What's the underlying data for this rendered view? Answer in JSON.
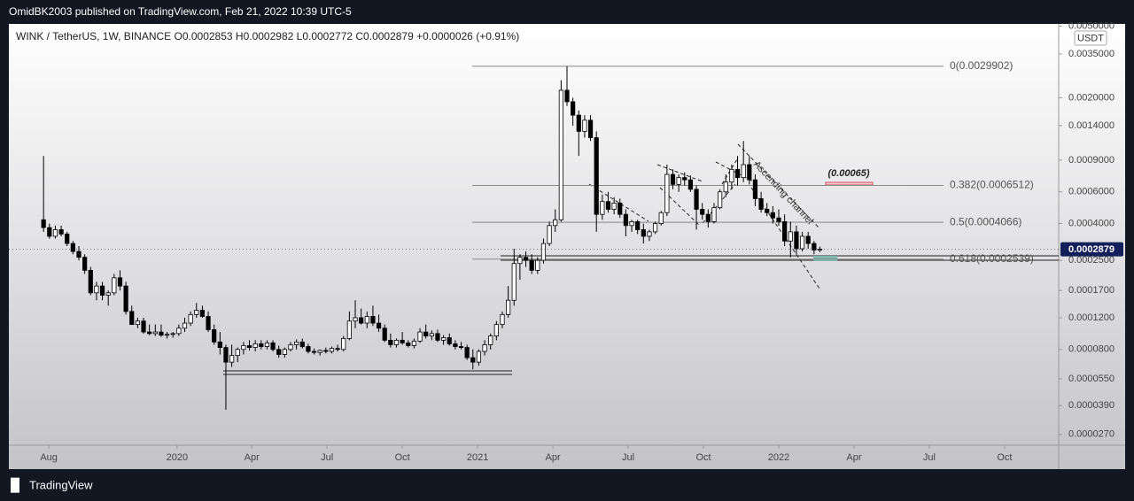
{
  "header": {
    "published": "OmidBK2003 published on TradingView.com, Feb 21, 2022 10:39 UTC-5"
  },
  "footer": {
    "brand": "TradingView"
  },
  "chart_data": {
    "type": "candlestick",
    "log_scale": true,
    "legend": {
      "symbol": "WINK / TetherUS, 1W, BINANCE",
      "open": "O0.0002853",
      "high": "H0.0002982",
      "low": "L0.0002772",
      "close": "C0.0002879",
      "change": "+0.0000026 (+0.91%)"
    },
    "currency": "USDT",
    "last_price": 0.0002879,
    "annotation": "(0.00065)",
    "channel_label": "Ascending channel",
    "fib_levels": [
      {
        "price": 0.0029902,
        "label": "0(0.0029902)"
      },
      {
        "price": 0.0006512,
        "label": "0.382(0.0006512)"
      },
      {
        "price": 0.0004066,
        "label": "0.5(0.0004066)"
      },
      {
        "price": 0.0002539,
        "label": "0.618(0.0002539)"
      }
    ],
    "ylim": [
      2.35e-05,
      0.00514
    ],
    "yticks": [
      {
        "value": 0.005,
        "label": "0.0050000"
      },
      {
        "value": 0.0035,
        "label": "0.0035000"
      },
      {
        "value": 0.002,
        "label": "0.0020000"
      },
      {
        "value": 0.0014,
        "label": "0.0014000"
      },
      {
        "value": 0.0009,
        "label": "0.0009000"
      },
      {
        "value": 0.0006,
        "label": "0.0006000"
      },
      {
        "value": 0.0004,
        "label": "0.0004000"
      },
      {
        "value": 0.00025,
        "label": "0.0002500"
      },
      {
        "value": 0.00017,
        "label": "0.0001700"
      },
      {
        "value": 0.00012,
        "label": "0.0001200"
      },
      {
        "value": 8e-05,
        "label": "0.0000800"
      },
      {
        "value": 5.5e-05,
        "label": "0.0000550"
      },
      {
        "value": 3.9e-05,
        "label": "0.0000390"
      },
      {
        "value": 2.7e-05,
        "label": "0.0000270"
      }
    ],
    "xlim": [
      -5.9,
      172.6
    ],
    "xticks": [
      {
        "value": 0.9,
        "label": "Aug"
      },
      {
        "value": 22.7,
        "label": "2020"
      },
      {
        "value": 35.4,
        "label": "Apr"
      },
      {
        "value": 48.2,
        "label": "Jul"
      },
      {
        "value": 61,
        "label": "Oct"
      },
      {
        "value": 73.8,
        "label": "2021"
      },
      {
        "value": 86.6,
        "label": "Apr"
      },
      {
        "value": 99.4,
        "label": "Jul"
      },
      {
        "value": 112.2,
        "label": "Oct"
      },
      {
        "value": 125,
        "label": "2022"
      },
      {
        "value": 137.8,
        "label": "Apr"
      },
      {
        "value": 150.6,
        "label": "Jul"
      },
      {
        "value": 163.4,
        "label": "Oct"
      }
    ],
    "candles": [
      [
        0.00042,
        0.00095,
        0.00036,
        0.00038
      ],
      [
        0.00038,
        0.0004,
        0.00033,
        0.00034
      ],
      [
        0.00034,
        0.00039,
        0.00033,
        0.00037
      ],
      [
        0.00037,
        0.00039,
        0.00034,
        0.00035
      ],
      [
        0.00035,
        0.00036,
        0.0003,
        0.00031
      ],
      [
        0.00031,
        0.00032,
        0.00027,
        0.00028
      ],
      [
        0.00028,
        0.0003,
        0.00025,
        0.00026
      ],
      [
        0.00026,
        0.00027,
        0.00021,
        0.00022
      ],
      [
        0.00022,
        0.00023,
        0.00016,
        0.000165
      ],
      [
        0.000165,
        0.00019,
        0.00015,
        0.00018
      ],
      [
        0.00018,
        0.00019,
        0.00015,
        0.00016
      ],
      [
        0.00016,
        0.00017,
        0.00014,
        0.000165
      ],
      [
        0.000165,
        0.00021,
        0.00016,
        0.0002
      ],
      [
        0.0002,
        0.00022,
        0.00017,
        0.00018
      ],
      [
        0.00018,
        0.00019,
        0.000125,
        0.00013
      ],
      [
        0.00013,
        0.00014,
        0.00011,
        0.00011
      ],
      [
        0.00011,
        0.00012,
        0.000105,
        0.000115
      ],
      [
        0.000115,
        0.00012,
        9.8e-05,
        0.0001
      ],
      [
        0.0001,
        0.00011,
        9.6e-05,
        9.8e-05
      ],
      [
        9.8e-05,
        0.00011,
        9.5e-05,
        0.0001
      ],
      [
        0.0001,
        0.00011,
        9.4e-05,
        9.6e-05
      ],
      [
        9.6e-05,
        0.0001,
        9.2e-05,
        9.7e-05
      ],
      [
        9.7e-05,
        0.0001,
        9.3e-05,
        9.8e-05
      ],
      [
        9.8e-05,
        0.00011,
        9.5e-05,
        0.000105
      ],
      [
        0.000105,
        0.00012,
        0.0001,
        0.000112
      ],
      [
        0.000112,
        0.00013,
        0.000108,
        0.000125
      ],
      [
        0.000125,
        0.000145,
        0.00012,
        0.000132
      ],
      [
        0.000132,
        0.00014,
        0.00012,
        0.000122
      ],
      [
        0.000122,
        0.00013,
        0.0001,
        0.000103
      ],
      [
        0.000103,
        0.00011,
        8.5e-05,
        8.8e-05
      ],
      [
        8.8e-05,
        0.0001,
        7.5e-05,
        8.2e-05
      ],
      [
        8.2e-05,
        8.5e-05,
        3.7e-05,
        6.8e-05
      ],
      [
        6.8e-05,
        8.5e-05,
        6.4e-05,
        7.4e-05
      ],
      [
        7.4e-05,
        8.2e-05,
        6.8e-05,
        8e-05
      ],
      [
        8e-05,
        8.8e-05,
        7.5e-05,
        8.4e-05
      ],
      [
        8.4e-05,
        9e-05,
        7.9e-05,
        8.2e-05
      ],
      [
        8.2e-05,
        9e-05,
        7.8e-05,
        8.6e-05
      ],
      [
        8.6e-05,
        9e-05,
        8e-05,
        8.3e-05
      ],
      [
        8.3e-05,
        9e-05,
        8e-05,
        8.7e-05
      ],
      [
        8.7e-05,
        9e-05,
        7.8e-05,
        8e-05
      ],
      [
        8e-05,
        8.4e-05,
        7.2e-05,
        7.5e-05
      ],
      [
        7.5e-05,
        8.2e-05,
        7.2e-05,
        8e-05
      ],
      [
        8e-05,
        8.8e-05,
        7.8e-05,
        8.5e-05
      ],
      [
        8.5e-05,
        9.1e-05,
        8e-05,
        8.8e-05
      ],
      [
        8.8e-05,
        9.2e-05,
        8.1e-05,
        8.3e-05
      ],
      [
        8.3e-05,
        8.6e-05,
        7.6e-05,
        7.8e-05
      ],
      [
        7.8e-05,
        8.1e-05,
        7.5e-05,
        7.7e-05
      ],
      [
        7.7e-05,
        8e-05,
        7.4e-05,
        7.9e-05
      ],
      [
        7.9e-05,
        8.2e-05,
        7.6e-05,
        7.8e-05
      ],
      [
        7.8e-05,
        8.3e-05,
        7.6e-05,
        8.1e-05
      ],
      [
        8.1e-05,
        8.5e-05,
        7.8e-05,
        8e-05
      ],
      [
        8e-05,
        9.5e-05,
        7.8e-05,
        9.2e-05
      ],
      [
        9.2e-05,
        0.00013,
        9e-05,
        0.000115
      ],
      [
        0.000115,
        0.00015,
        0.000105,
        0.00012
      ],
      [
        0.00012,
        0.000135,
        0.00011,
        0.000112
      ],
      [
        0.000112,
        0.00013,
        0.000105,
        0.000122
      ],
      [
        0.000122,
        0.00014,
        0.000108,
        0.000112
      ],
      [
        0.000112,
        0.000125,
        0.0001,
        0.000105
      ],
      [
        0.000105,
        0.00011,
        8.8e-05,
        9e-05
      ],
      [
        9e-05,
        9.8e-05,
        8.2e-05,
        8.5e-05
      ],
      [
        8.5e-05,
        9.2e-05,
        8.2e-05,
        9e-05
      ],
      [
        9e-05,
        0.0001,
        8.5e-05,
        8.7e-05
      ],
      [
        8.7e-05,
        9e-05,
        8.2e-05,
        8.4e-05
      ],
      [
        8.4e-05,
        9.2e-05,
        8.1e-05,
        8.9e-05
      ],
      [
        8.9e-05,
        0.000105,
        8.7e-05,
        0.0001
      ],
      [
        0.0001,
        0.00011,
        9.2e-05,
        9.5e-05
      ],
      [
        9.5e-05,
        0.000102,
        9e-05,
        9.8e-05
      ],
      [
        9.8e-05,
        0.000103,
        8.8e-05,
        9e-05
      ],
      [
        9e-05,
        9.6e-05,
        8.5e-05,
        9.3e-05
      ],
      [
        9.3e-05,
        9.8e-05,
        8.4e-05,
        8.6e-05
      ],
      [
        8.6e-05,
        9e-05,
        8e-05,
        8.3e-05
      ],
      [
        8.3e-05,
        8.8e-05,
        8e-05,
        8.2e-05
      ],
      [
        8.2e-05,
        8.5e-05,
        7e-05,
        7.2e-05
      ],
      [
        7.2e-05,
        8e-05,
        6.2e-05,
        6.8e-05
      ],
      [
        6.8e-05,
        8e-05,
        6.5e-05,
        7.8e-05
      ],
      [
        7.8e-05,
        9e-05,
        7.4e-05,
        8.5e-05
      ],
      [
        8.5e-05,
        9.8e-05,
        8e-05,
        9.5e-05
      ],
      [
        9.5e-05,
        0.000115,
        9e-05,
        0.00011
      ],
      [
        0.00011,
        0.00013,
        0.000105,
        0.000125
      ],
      [
        0.000125,
        0.00018,
        0.00012,
        0.00015
      ],
      [
        0.00015,
        0.00029,
        0.00014,
        0.00024
      ],
      [
        0.00024,
        0.00027,
        0.000195,
        0.00026
      ],
      [
        0.00026,
        0.00028,
        0.00023,
        0.00025
      ],
      [
        0.00025,
        0.00027,
        0.00021,
        0.00022
      ],
      [
        0.00022,
        0.00026,
        0.00021,
        0.00025
      ],
      [
        0.00025,
        0.00033,
        0.00024,
        0.00031
      ],
      [
        0.00031,
        0.00041,
        0.0003,
        0.00039
      ],
      [
        0.00039,
        0.00048,
        0.00036,
        0.00042
      ],
      [
        0.00042,
        0.0025,
        0.00041,
        0.0022
      ],
      [
        0.0022,
        0.0029902,
        0.0018,
        0.0019
      ],
      [
        0.0019,
        0.002,
        0.0014,
        0.0016
      ],
      [
        0.0016,
        0.0017,
        0.00095,
        0.0013
      ],
      [
        0.0013,
        0.0016,
        0.0012,
        0.0015
      ],
      [
        0.0015,
        0.0016,
        0.00115,
        0.0012
      ],
      [
        0.0012,
        0.0013,
        0.00036,
        0.00045
      ],
      [
        0.00045,
        0.00058,
        0.00042,
        0.00053
      ],
      [
        0.00053,
        0.0006,
        0.00046,
        0.00048
      ],
      [
        0.00048,
        0.00056,
        0.00045,
        0.00052
      ],
      [
        0.00052,
        0.00055,
        0.00043,
        0.00045
      ],
      [
        0.00045,
        0.00048,
        0.00034,
        0.00039
      ],
      [
        0.00039,
        0.00042,
        0.00036,
        0.00041
      ],
      [
        0.00041,
        0.00042,
        0.00035,
        0.00037
      ],
      [
        0.00037,
        0.0004,
        0.00031,
        0.00034
      ],
      [
        0.00034,
        0.00037,
        0.00032,
        0.00036
      ],
      [
        0.00036,
        0.00041,
        0.00035,
        0.0004
      ],
      [
        0.0004,
        0.00047,
        0.00039,
        0.00046
      ],
      [
        0.00046,
        0.00085,
        0.00044,
        0.00075
      ],
      [
        0.00075,
        0.0008,
        0.00062,
        0.00066
      ],
      [
        0.00066,
        0.00075,
        0.0006,
        0.00072
      ],
      [
        0.00072,
        0.00077,
        0.00065,
        0.0007
      ],
      [
        0.0007,
        0.00074,
        0.0006,
        0.00062
      ],
      [
        0.00062,
        0.00065,
        0.00037,
        0.00048
      ],
      [
        0.00048,
        0.00052,
        0.00042,
        0.00045
      ],
      [
        0.00045,
        0.00048,
        0.00038,
        0.00041
      ],
      [
        0.00041,
        0.00052,
        0.0004,
        0.00049
      ],
      [
        0.00049,
        0.00062,
        0.00048,
        0.0006
      ],
      [
        0.0006,
        0.00075,
        0.00056,
        0.00068
      ],
      [
        0.00068,
        0.00085,
        0.00062,
        0.0008
      ],
      [
        0.0008,
        0.00095,
        0.00065,
        0.00072
      ],
      [
        0.00072,
        0.00115,
        0.00068,
        0.00085
      ],
      [
        0.00085,
        0.00095,
        0.00066,
        0.0007
      ],
      [
        0.0007,
        0.00075,
        0.0005,
        0.00055
      ],
      [
        0.00055,
        0.0006,
        0.00046,
        0.00048
      ],
      [
        0.00048,
        0.00052,
        0.00044,
        0.00046
      ],
      [
        0.00046,
        0.0005,
        0.0004,
        0.00043
      ],
      [
        0.00043,
        0.00048,
        0.00039,
        0.00041
      ],
      [
        0.00041,
        0.00045,
        0.0003,
        0.00032
      ],
      [
        0.00032,
        0.00041,
        0.00026,
        0.00036
      ],
      [
        0.00036,
        0.00039,
        0.00027,
        0.00029
      ],
      [
        0.00029,
        0.00036,
        0.00028,
        0.00034
      ],
      [
        0.00034,
        0.00036,
        0.00029,
        0.00031
      ],
      [
        0.00031,
        0.00032,
        0.00027,
        0.0002853
      ],
      [
        0.0002853,
        0.0002982,
        0.0002772,
        0.0002879
      ]
    ]
  }
}
